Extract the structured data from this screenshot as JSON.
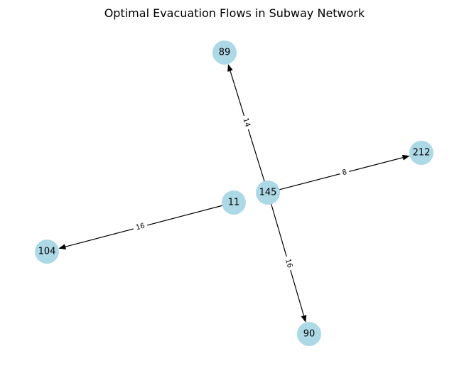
{
  "title": "Optimal Evacuation Flows in Subway Network",
  "colors": {
    "node_fill": "#add8e6",
    "edge": "#000000",
    "label_bg": "#ffffff"
  },
  "nodes": [
    {
      "id": "89",
      "label": "89"
    },
    {
      "id": "212",
      "label": "212"
    },
    {
      "id": "145",
      "label": "145"
    },
    {
      "id": "11",
      "label": "11"
    },
    {
      "id": "104",
      "label": "104"
    },
    {
      "id": "90",
      "label": "90"
    }
  ],
  "edges": [
    {
      "source": "145",
      "target": "89",
      "label": "14"
    },
    {
      "source": "145",
      "target": "212",
      "label": "8"
    },
    {
      "source": "11",
      "target": "104",
      "label": "16"
    },
    {
      "source": "145",
      "target": "90",
      "label": "16"
    }
  ]
}
